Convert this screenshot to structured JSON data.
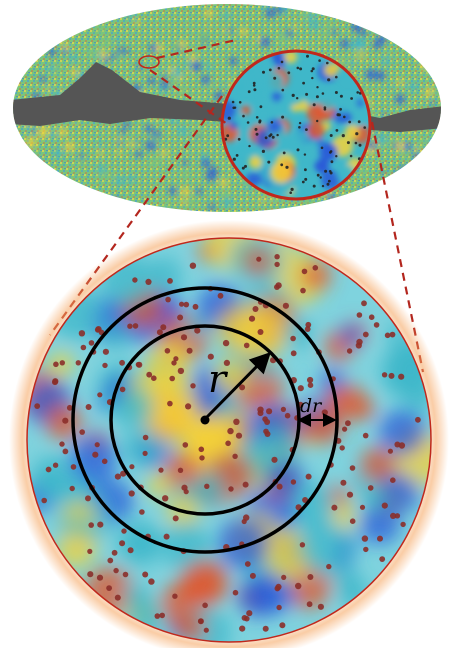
{
  "labels": {
    "radius": "r",
    "shell_width": "dr"
  },
  "colors": {
    "background": "#ffffff",
    "ring_outline": "#c0281c",
    "connector_dash": "#b3261e",
    "galactic_mask": "#555555",
    "map_base": "#3fb7c9",
    "cold_spot": "#2a5bd8",
    "warm_spot": "#f4d23a",
    "hot_spot": "#e2572e",
    "peak_marker": "#8b2f2a",
    "annulus_stroke": "#000000",
    "glow": "#f5a35c"
  },
  "icons": {
    "radius_arrow": "diagonal-arrow-icon",
    "width_arrow": "double-headed-arrow-icon"
  }
}
